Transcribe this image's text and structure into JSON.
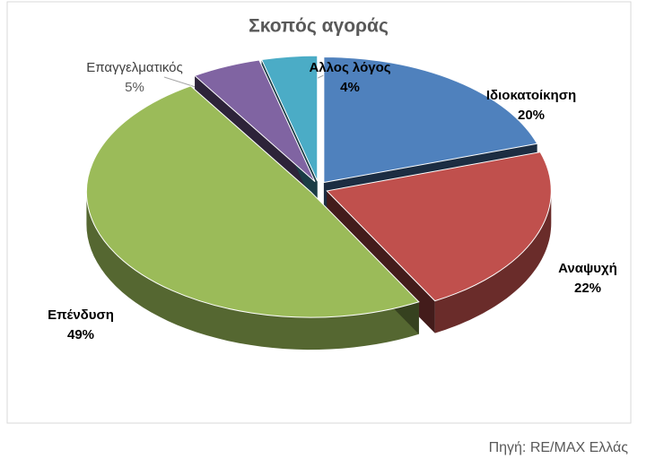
{
  "chart_data": {
    "type": "pie",
    "title": "Σκοπός αγοράς",
    "categories": [
      "Ιδιοκατοίκηση",
      "Αναψυχή",
      "Επένδυση",
      "Επαγγελματικός",
      "Αλλος λόγος"
    ],
    "values": [
      20,
      22,
      49,
      5,
      4
    ],
    "value_labels": [
      "20%",
      "22%",
      "49%",
      "5%",
      "4%"
    ],
    "colors": [
      "#4f81bd",
      "#c0504d",
      "#9bbb59",
      "#8064a2",
      "#4bacc6"
    ]
  },
  "source": "Πηγή: RE/MAX Ελλάς"
}
